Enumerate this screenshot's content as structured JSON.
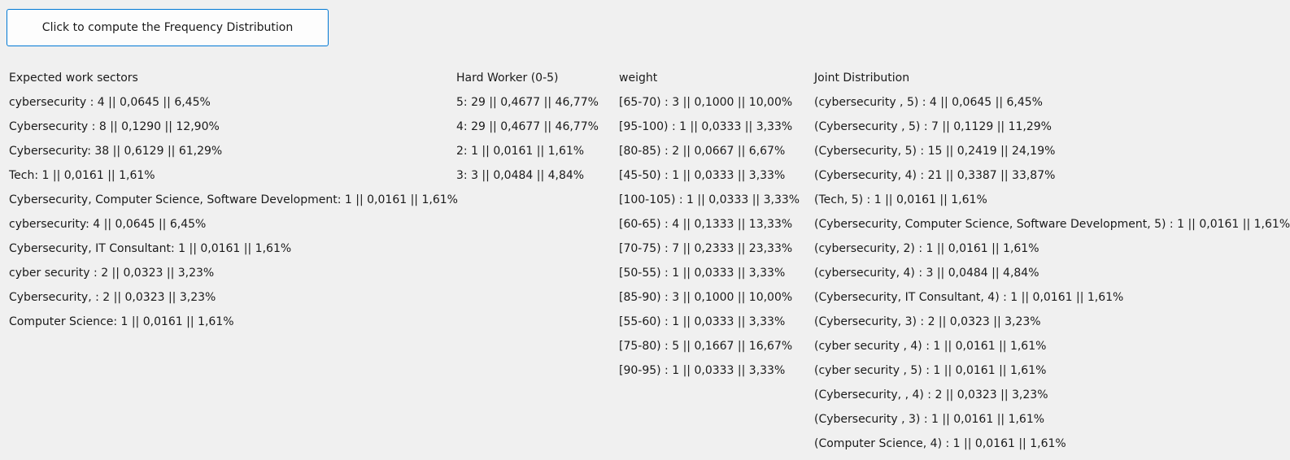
{
  "button": {
    "label": "Click to compute the Frequency Distribution"
  },
  "sectors": {
    "title": "Expected work sectors",
    "rows": [
      "cybersecurity : 4 || 0,0645 || 6,45%",
      "Cybersecurity : 8 || 0,1290 || 12,90%",
      "Cybersecurity: 38 || 0,6129 || 61,29%",
      "Tech: 1 || 0,0161 || 1,61%",
      "Cybersecurity, Computer Science, Software Development: 1 || 0,0161 || 1,61%",
      "cybersecurity: 4 || 0,0645 || 6,45%",
      "Cybersecurity, IT Consultant: 1 || 0,0161 || 1,61%",
      "cyber security : 2 || 0,0323 || 3,23%",
      "Cybersecurity, : 2 || 0,0323 || 3,23%",
      "Computer Science: 1 || 0,0161 || 1,61%"
    ]
  },
  "hard_worker": {
    "title": "Hard Worker (0-5)",
    "rows": [
      "5:  29 || 0,4677 || 46,77%",
      "4:  29 || 0,4677 || 46,77%",
      "2:  1 || 0,0161 || 1,61%",
      "3:  3 || 0,0484 || 4,84%"
    ]
  },
  "weight": {
    "title": "weight",
    "rows": [
      "[65-70) :  3 || 0,1000 || 10,00%",
      "[95-100) :  1 || 0,0333 || 3,33%",
      "[80-85) :  2 || 0,0667 || 6,67%",
      "[45-50) :  1 || 0,0333 || 3,33%",
      "[100-105) :  1 || 0,0333 || 3,33%",
      "[60-65) :  4 || 0,1333 || 13,33%",
      "[70-75) :  7 || 0,2333 || 23,33%",
      "[50-55) :  1 || 0,0333 || 3,33%",
      "[85-90) :  3 || 0,1000 || 10,00%",
      "[55-60) :  1 || 0,0333 || 3,33%",
      "[75-80) :  5 || 0,1667 || 16,67%",
      "[90-95) :  1 || 0,0333 || 3,33%"
    ]
  },
  "joint": {
    "title": "Joint Distribution",
    "rows": [
      "(cybersecurity , 5) : 4 || 0,0645 || 6,45%",
      "(Cybersecurity , 5) : 7 || 0,1129 || 11,29%",
      "(Cybersecurity, 5) : 15 || 0,2419 || 24,19%",
      "(Cybersecurity, 4) : 21 || 0,3387 || 33,87%",
      "(Tech, 5) : 1 || 0,0161 || 1,61%",
      "(Cybersecurity, Computer Science, Software Development, 5) : 1 || 0,0161 || 1,61%",
      "(cybersecurity, 2) : 1 || 0,0161 || 1,61%",
      "(cybersecurity, 4) : 3 || 0,0484 || 4,84%",
      "(Cybersecurity, IT Consultant, 4) : 1 || 0,0161 || 1,61%",
      "(Cybersecurity, 3) : 2 || 0,0323 || 3,23%",
      "(cyber security , 4) : 1 || 0,0161 || 1,61%",
      "(cyber security , 5) : 1 || 0,0161 || 1,61%",
      "(Cybersecurity, , 4) : 2 || 0,0323 || 3,23%",
      "(Cybersecurity , 3) : 1 || 0,0161 || 1,61%",
      "(Computer Science, 4) : 1 || 0,0161 || 1,61%"
    ]
  }
}
